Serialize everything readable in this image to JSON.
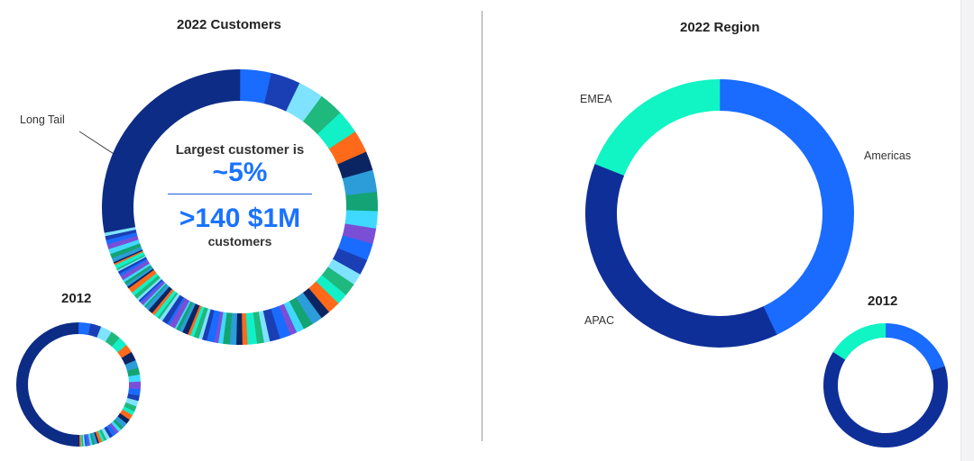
{
  "left_panel": {
    "title": "2022 Customers",
    "long_tail_label": "Long Tail",
    "callout": {
      "line1": "Largest customer is",
      "line2": "~5%",
      "line3": ">140 $1M",
      "line4": "customers"
    },
    "sub_title": "2012"
  },
  "right_panel": {
    "title": "2022 Region",
    "sub_title": "2012"
  },
  "chart_data": [
    {
      "type": "pie",
      "title": "2022 Customers",
      "slices": [
        {
          "label": "Long Tail",
          "value": 28
        }
      ],
      "other_slices_count": 80,
      "other_slices_total": 72,
      "largest_customer_share": "~5%",
      "colors": [
        "#0d2c85",
        "#1a6bff",
        "#1a3fb5",
        "#7fe3ff",
        "#1fb87d",
        "#11f0c7",
        "#ff6a1a",
        "#0b2563",
        "#2c9dd9",
        "#13a374",
        "#3fd9ff",
        "#7a4fd6"
      ]
    },
    {
      "type": "pie",
      "title": "2012",
      "slices": [
        {
          "label": "Long Tail",
          "value": 50
        }
      ],
      "other_slices_count": 40,
      "other_slices_total": 50
    },
    {
      "type": "pie",
      "title": "2022 Region",
      "categories": [
        "Americas",
        "APAC",
        "EMEA"
      ],
      "values": [
        43,
        38,
        19
      ],
      "colors": [
        "#1a6bff",
        "#0f2f98",
        "#11f4c4"
      ]
    },
    {
      "type": "pie",
      "title": "2012",
      "categories": [
        "Americas",
        "APAC",
        "EMEA"
      ],
      "values": [
        20,
        64,
        16
      ],
      "colors": [
        "#1a6bff",
        "#0f2f98",
        "#11f4c4"
      ]
    }
  ]
}
